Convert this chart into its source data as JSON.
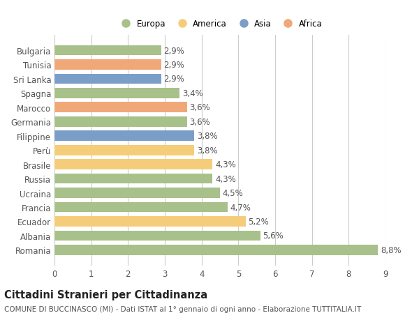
{
  "categories": [
    "Bulgaria",
    "Tunisia",
    "Sri Lanka",
    "Spagna",
    "Marocco",
    "Germania",
    "Filippine",
    "Perù",
    "Brasile",
    "Russia",
    "Ucraina",
    "Francia",
    "Ecuador",
    "Albania",
    "Romania"
  ],
  "values": [
    2.9,
    2.9,
    2.9,
    3.4,
    3.6,
    3.6,
    3.8,
    3.8,
    4.3,
    4.3,
    4.5,
    4.7,
    5.2,
    5.6,
    8.8
  ],
  "continents": [
    "Europa",
    "Africa",
    "Asia",
    "Europa",
    "Africa",
    "Europa",
    "Asia",
    "America",
    "America",
    "Europa",
    "Europa",
    "Europa",
    "America",
    "Europa",
    "Europa"
  ],
  "labels": [
    "2,9%",
    "2,9%",
    "2,9%",
    "3,4%",
    "3,6%",
    "3,6%",
    "3,8%",
    "3,8%",
    "4,3%",
    "4,3%",
    "4,5%",
    "4,7%",
    "5,2%",
    "5,6%",
    "8,8%"
  ],
  "colors": {
    "Europa": "#a8c08a",
    "America": "#f5cd7a",
    "Asia": "#7b9ec9",
    "Africa": "#f0a878"
  },
  "legend_order": [
    "Europa",
    "America",
    "Asia",
    "Africa"
  ],
  "xlim": [
    0,
    9
  ],
  "xticks": [
    0,
    1,
    2,
    3,
    4,
    5,
    6,
    7,
    8,
    9
  ],
  "title": "Cittadini Stranieri per Cittadinanza",
  "subtitle": "COMUNE DI BUCCINASCO (MI) - Dati ISTAT al 1° gennaio di ogni anno - Elaborazione TUTTITALIA.IT",
  "background_color": "#ffffff",
  "grid_color": "#cccccc",
  "bar_height": 0.72,
  "label_fontsize": 8.5,
  "tick_fontsize": 8.5,
  "title_fontsize": 10.5,
  "subtitle_fontsize": 7.5
}
